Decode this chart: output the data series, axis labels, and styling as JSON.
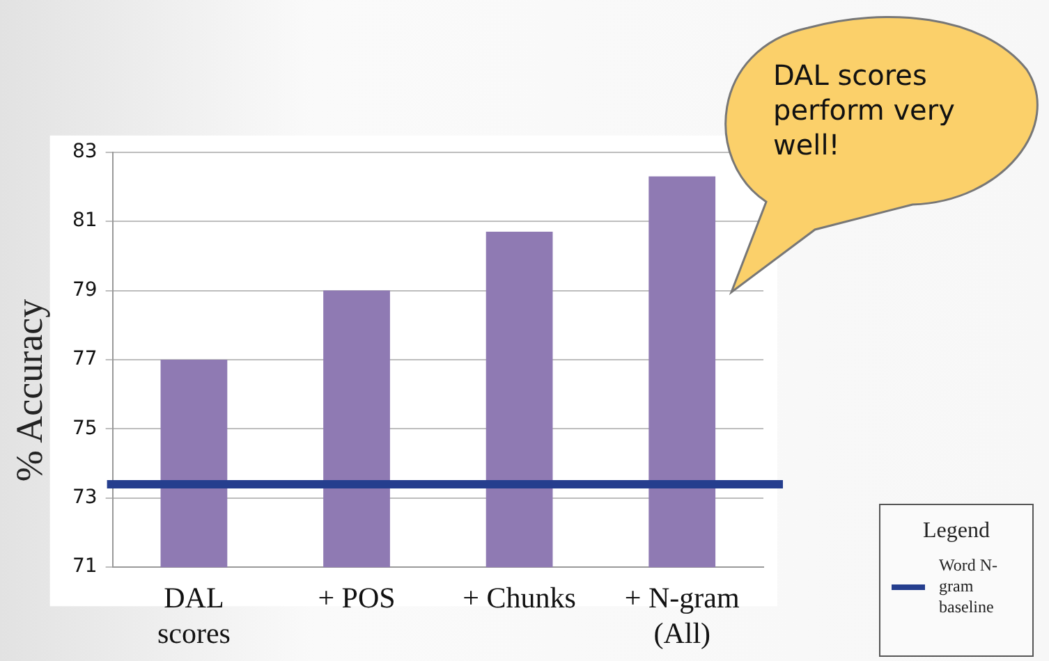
{
  "chart_data": {
    "type": "bar",
    "ylabel": "% Accuracy",
    "categories": [
      "DAL scores",
      "+ POS",
      "+ Chunks",
      "+ N-gram (All)"
    ],
    "values": [
      77.0,
      79.0,
      80.7,
      82.3
    ],
    "color": "#8f7ab3",
    "ylim": [
      71,
      83
    ],
    "yticks": [
      71,
      73,
      75,
      77,
      79,
      81,
      83
    ],
    "grid": "y",
    "legend": "bottom right",
    "legend_title": "Legend",
    "ref_lines": [
      {
        "axis": "y",
        "value": 73.4,
        "label": "Word N-gram baseline",
        "color": "#253e8e"
      }
    ],
    "annotations": [
      "DAL scores perform very well!"
    ]
  }
}
